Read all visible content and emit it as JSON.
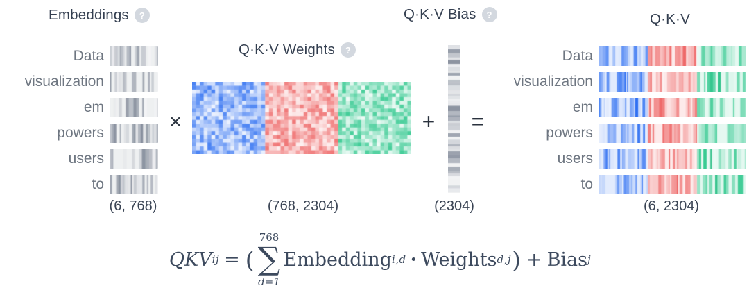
{
  "panels": {
    "embeddings": {
      "title": "Embeddings",
      "dims": "(6, 768)"
    },
    "weights": {
      "title": "Q·K·V Weights",
      "dims": "(768, 2304)"
    },
    "bias": {
      "title": "Q·K·V Bias",
      "dims": "(2304)"
    },
    "qkv": {
      "title": "Q·K·V",
      "dims": "(6, 2304)"
    }
  },
  "tokens": [
    "Data",
    "visualization",
    "em",
    "powers",
    "users",
    "to"
  ],
  "operators": {
    "multiply": "×",
    "plus": "+",
    "equals": "="
  },
  "help_icon": "?",
  "colors": {
    "query_blue": "#6d9ef5",
    "key_red": "#f08a8a",
    "value_green": "#3ec894",
    "embedding_gray": "#9aa3b2",
    "title_text": "#343f50",
    "token_text": "#6e7681",
    "formula_text": "#3d4a5e"
  },
  "formula": {
    "lhs": "QKV",
    "lhs_sub": "ij",
    "equals": "=",
    "open_paren": "(",
    "sum_symbol": "∑",
    "sum_upper": "768",
    "sum_lower": "d=1",
    "embedding_term": "Embedding",
    "embedding_sub": "i,d",
    "dot": "·",
    "weights_term": "Weights",
    "weights_sub": "d,j",
    "close_paren": ")",
    "plus": "+",
    "bias_term": "Bias",
    "bias_sub": "j"
  }
}
